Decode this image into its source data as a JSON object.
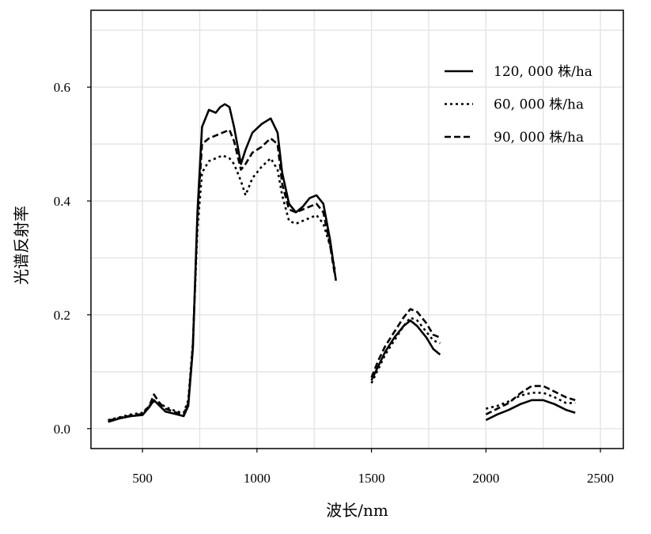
{
  "chart_data": {
    "type": "line",
    "xlabel": "波长/nm",
    "ylabel": "光谱反射率",
    "xlim": [
      275,
      2600
    ],
    "ylim": [
      -0.035,
      0.735
    ],
    "xticks": [
      500,
      1000,
      1500,
      2000,
      2500
    ],
    "yticks": [
      0.0,
      0.2,
      0.4,
      0.6
    ],
    "xtick_labels": [
      "500",
      "1000",
      "1500",
      "2000",
      "2500"
    ],
    "ytick_labels": [
      "0.0",
      "0.2",
      "0.4",
      "0.6"
    ],
    "grid": true,
    "legend_position": "top-right",
    "series": [
      {
        "name": "120, 000 株/ha",
        "dash": "solid",
        "color": "#000000",
        "segments": [
          [
            [
              350,
              0.012
            ],
            [
              400,
              0.018
            ],
            [
              450,
              0.022
            ],
            [
              500,
              0.024
            ],
            [
              530,
              0.038
            ],
            [
              550,
              0.05
            ],
            [
              575,
              0.04
            ],
            [
              600,
              0.03
            ],
            [
              650,
              0.025
            ],
            [
              680,
              0.022
            ],
            [
              700,
              0.04
            ],
            [
              720,
              0.14
            ],
            [
              740,
              0.38
            ],
            [
              760,
              0.53
            ],
            [
              790,
              0.56
            ],
            [
              820,
              0.555
            ],
            [
              840,
              0.565
            ],
            [
              860,
              0.57
            ],
            [
              880,
              0.565
            ],
            [
              900,
              0.53
            ],
            [
              930,
              0.465
            ],
            [
              950,
              0.49
            ],
            [
              980,
              0.52
            ],
            [
              1020,
              0.535
            ],
            [
              1060,
              0.545
            ],
            [
              1090,
              0.52
            ],
            [
              1110,
              0.45
            ],
            [
              1140,
              0.395
            ],
            [
              1170,
              0.38
            ],
            [
              1200,
              0.39
            ],
            [
              1230,
              0.405
            ],
            [
              1260,
              0.41
            ],
            [
              1290,
              0.395
            ],
            [
              1320,
              0.33
            ],
            [
              1345,
              0.26
            ]
          ],
          [
            [
              1500,
              0.085
            ],
            [
              1530,
              0.11
            ],
            [
              1560,
              0.135
            ],
            [
              1600,
              0.16
            ],
            [
              1640,
              0.18
            ],
            [
              1670,
              0.19
            ],
            [
              1700,
              0.18
            ],
            [
              1740,
              0.16
            ],
            [
              1770,
              0.14
            ],
            [
              1800,
              0.13
            ]
          ],
          [
            [
              2000,
              0.015
            ],
            [
              2050,
              0.025
            ],
            [
              2100,
              0.033
            ],
            [
              2150,
              0.043
            ],
            [
              2200,
              0.05
            ],
            [
              2250,
              0.05
            ],
            [
              2300,
              0.043
            ],
            [
              2350,
              0.033
            ],
            [
              2390,
              0.028
            ]
          ]
        ]
      },
      {
        "name": "60, 000 株/ha",
        "dash": "dotted",
        "color": "#000000",
        "segments": [
          [
            [
              350,
              0.015
            ],
            [
              400,
              0.02
            ],
            [
              450,
              0.025
            ],
            [
              500,
              0.028
            ],
            [
              530,
              0.04
            ],
            [
              550,
              0.048
            ],
            [
              575,
              0.045
            ],
            [
              600,
              0.038
            ],
            [
              650,
              0.03
            ],
            [
              680,
              0.028
            ],
            [
              700,
              0.05
            ],
            [
              720,
              0.15
            ],
            [
              740,
              0.35
            ],
            [
              760,
              0.45
            ],
            [
              790,
              0.47
            ],
            [
              820,
              0.475
            ],
            [
              850,
              0.48
            ],
            [
              880,
              0.475
            ],
            [
              900,
              0.465
            ],
            [
              930,
              0.435
            ],
            [
              950,
              0.41
            ],
            [
              980,
              0.44
            ],
            [
              1020,
              0.46
            ],
            [
              1060,
              0.475
            ],
            [
              1090,
              0.455
            ],
            [
              1110,
              0.41
            ],
            [
              1140,
              0.365
            ],
            [
              1170,
              0.36
            ],
            [
              1200,
              0.365
            ],
            [
              1230,
              0.37
            ],
            [
              1260,
              0.375
            ],
            [
              1290,
              0.36
            ],
            [
              1320,
              0.32
            ],
            [
              1340,
              0.28
            ]
          ],
          [
            [
              1500,
              0.08
            ],
            [
              1530,
              0.105
            ],
            [
              1560,
              0.13
            ],
            [
              1600,
              0.155
            ],
            [
              1640,
              0.18
            ],
            [
              1670,
              0.195
            ],
            [
              1700,
              0.19
            ],
            [
              1740,
              0.17
            ],
            [
              1770,
              0.155
            ],
            [
              1800,
              0.15
            ]
          ],
          [
            [
              2000,
              0.035
            ],
            [
              2050,
              0.04
            ],
            [
              2100,
              0.048
            ],
            [
              2150,
              0.058
            ],
            [
              2200,
              0.063
            ],
            [
              2250,
              0.063
            ],
            [
              2300,
              0.055
            ],
            [
              2350,
              0.045
            ],
            [
              2390,
              0.045
            ]
          ]
        ]
      },
      {
        "name": "90, 000 株/ha",
        "dash": "dashed",
        "color": "#000000",
        "segments": [
          [
            [
              350,
              0.014
            ],
            [
              400,
              0.019
            ],
            [
              450,
              0.023
            ],
            [
              500,
              0.026
            ],
            [
              530,
              0.04
            ],
            [
              550,
              0.06
            ],
            [
              575,
              0.045
            ],
            [
              600,
              0.035
            ],
            [
              650,
              0.028
            ],
            [
              680,
              0.025
            ],
            [
              700,
              0.045
            ],
            [
              720,
              0.145
            ],
            [
              740,
              0.37
            ],
            [
              760,
              0.5
            ],
            [
              790,
              0.51
            ],
            [
              820,
              0.515
            ],
            [
              850,
              0.52
            ],
            [
              880,
              0.525
            ],
            [
              900,
              0.505
            ],
            [
              930,
              0.455
            ],
            [
              950,
              0.465
            ],
            [
              980,
              0.485
            ],
            [
              1020,
              0.495
            ],
            [
              1060,
              0.51
            ],
            [
              1090,
              0.5
            ],
            [
              1110,
              0.43
            ],
            [
              1140,
              0.385
            ],
            [
              1170,
              0.38
            ],
            [
              1200,
              0.385
            ],
            [
              1230,
              0.39
            ],
            [
              1260,
              0.395
            ],
            [
              1290,
              0.38
            ],
            [
              1320,
              0.32
            ],
            [
              1340,
              0.27
            ]
          ],
          [
            [
              1500,
              0.09
            ],
            [
              1530,
              0.12
            ],
            [
              1560,
              0.145
            ],
            [
              1600,
              0.17
            ],
            [
              1640,
              0.195
            ],
            [
              1670,
              0.21
            ],
            [
              1700,
              0.205
            ],
            [
              1740,
              0.185
            ],
            [
              1770,
              0.165
            ],
            [
              1800,
              0.16
            ]
          ],
          [
            [
              2000,
              0.025
            ],
            [
              2050,
              0.035
            ],
            [
              2100,
              0.045
            ],
            [
              2150,
              0.062
            ],
            [
              2200,
              0.075
            ],
            [
              2250,
              0.075
            ],
            [
              2300,
              0.065
            ],
            [
              2350,
              0.055
            ],
            [
              2390,
              0.05
            ]
          ]
        ]
      }
    ]
  }
}
